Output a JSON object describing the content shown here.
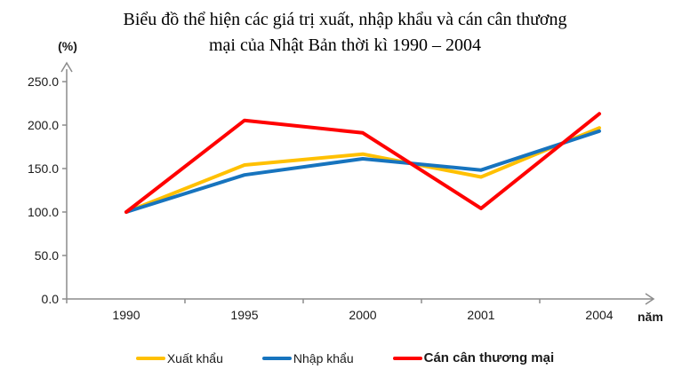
{
  "chart_data": {
    "type": "line",
    "title_lines": [
      "Biểu đồ thể hiện các giá trị xuất, nhập khẩu và cán cân thương",
      "mại của Nhật Bản thời kì 1990 – 2004"
    ],
    "y_axis_unit": "(%)",
    "x_axis_label": "năm",
    "categories": [
      "1990",
      "1995",
      "2000",
      "2001",
      "2004"
    ],
    "y_ticks": [
      "0.0",
      "50.0",
      "100.0",
      "150.0",
      "200.0",
      "250.0"
    ],
    "ylim": [
      0,
      250
    ],
    "grid": false,
    "legend_position": "bottom",
    "axis_color": "#8c8c8c",
    "series": [
      {
        "name": "Xuất khẩu",
        "color": "#FFC000",
        "values": [
          100,
          154.1,
          166.6,
          140.3,
          196.7
        ]
      },
      {
        "name": "Nhập khẩu",
        "color": "#1774BE",
        "values": [
          100,
          142.7,
          161.2,
          148.3,
          193.1
        ]
      },
      {
        "name": "Cán cân thương mại",
        "color": "#FF0000",
        "values": [
          100,
          205.4,
          191.0,
          104.2,
          213.0
        ]
      }
    ]
  }
}
